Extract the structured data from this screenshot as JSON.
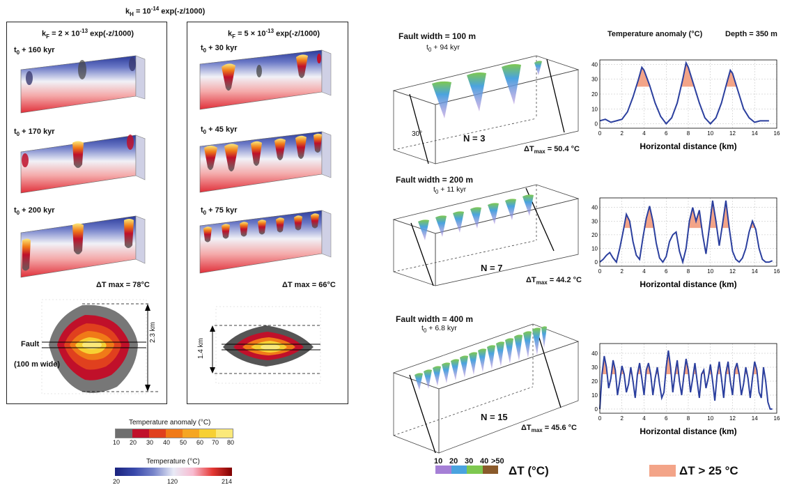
{
  "header": {
    "kh": "k",
    "kh_sub": "H",
    "kh_eq": " = 10",
    "kh_exp": "-14",
    "kh_tail": " exp(-z/1000)"
  },
  "left_panel": {
    "title_k": "k",
    "title_sub": "F",
    "title_eq": " = 2 × 10",
    "title_exp": "-13",
    "title_tail": " exp(-z/1000)",
    "times": [
      {
        "t": "t",
        "sub": "0",
        "rest": " + 160 kyr"
      },
      {
        "t": "t",
        "sub": "0",
        "rest": " + 170 kyr"
      },
      {
        "t": "t",
        "sub": "0",
        "rest": " + 200 kyr"
      }
    ],
    "dtmax": "ΔT max = 78°C",
    "fault_label": "Fault",
    "fault_width": "(100 m wide)",
    "scale": "2.3 km"
  },
  "mid_panel": {
    "title_k": "k",
    "title_sub": "F",
    "title_eq": " = 5 × 10",
    "title_exp": "-13",
    "title_tail": " exp(-z/1000)",
    "times": [
      {
        "t": "t",
        "sub": "0",
        "rest": " + 30 kyr"
      },
      {
        "t": "t",
        "sub": "0",
        "rest": " + 45 kyr"
      },
      {
        "t": "t",
        "sub": "0",
        "rest": " + 75 kyr"
      }
    ],
    "dtmax": "ΔT max = 66°C",
    "scale": "1.4 km"
  },
  "colorbar_anomaly": {
    "title": "Temperature anomaly (°C)",
    "ticks": [
      "10",
      "20",
      "30",
      "40",
      "50",
      "60",
      "70",
      "80"
    ],
    "colors": [
      "#6e6e6e",
      "#c0102a",
      "#e0401e",
      "#f07a18",
      "#f5a623",
      "#f7d033",
      "#fbe97a"
    ]
  },
  "colorbar_temp": {
    "title": "Temperature (°C)",
    "ticks": [
      "20",
      "120",
      "214"
    ]
  },
  "right": {
    "rows": [
      {
        "width": "Fault width = 100 m",
        "t": "t",
        "sub": "0",
        "rest": " + 94 kyr",
        "n": "N = 3",
        "dt": "ΔT",
        "dtsub": "max",
        "dtval": " = 50.4 °C",
        "angle": "30°"
      },
      {
        "width": "Fault width = 200 m",
        "t": "t",
        "sub": "0",
        "rest": " + 11 kyr",
        "n": "N = 7",
        "dt": "ΔT",
        "dtsub": "max",
        "dtval": " = 44.2 °C"
      },
      {
        "width": "Fault width = 400 m",
        "t": "t",
        "sub": "0",
        "rest": " + 6.8 kyr",
        "n": "N = 15",
        "dt": "ΔT",
        "dtsub": "max",
        "dtval": " = 45.6 °C"
      }
    ],
    "chart_header": "Temperature anomaly (°C)",
    "chart_depth": "Depth = 350 m",
    "xlabel": "Horizontal distance  (km)",
    "legend_dt_ticks": [
      "10",
      "20",
      "30",
      "40",
      ">50"
    ],
    "legend_dt_label": "ΔT (°C)",
    "legend_dt_colors": [
      "#a57fd6",
      "#4aa3df",
      "#7ec850",
      "#8a5a2b"
    ],
    "legend_gt": "ΔT > 25 °C",
    "legend_gt_color": "#f3a488"
  },
  "chart_data": [
    {
      "type": "line",
      "x": [
        0,
        0.5,
        1,
        1.5,
        2,
        2.5,
        3,
        3.5,
        3.8,
        4,
        4.5,
        5,
        5.5,
        6,
        6.5,
        7,
        7.5,
        7.8,
        8,
        8.5,
        9,
        9.5,
        10,
        10.5,
        11,
        11.5,
        11.8,
        12,
        12.5,
        13,
        13.5,
        14,
        14.5,
        15,
        15.3
      ],
      "y": [
        2,
        3,
        1,
        2,
        3,
        8,
        18,
        30,
        38,
        36,
        26,
        14,
        5,
        0,
        4,
        14,
        30,
        41,
        38,
        26,
        14,
        4,
        0,
        4,
        14,
        28,
        36,
        34,
        22,
        10,
        4,
        1,
        2,
        2,
        2
      ],
      "xlim": [
        0,
        16
      ],
      "ylim": [
        -3,
        43
      ],
      "xticks": [
        0,
        2,
        4,
        6,
        8,
        10,
        12,
        14,
        16
      ],
      "yticks": [
        0,
        10,
        20,
        30,
        40
      ],
      "threshold": 25,
      "xlabel": "Horizontal distance  (km)"
    },
    {
      "type": "line",
      "x": [
        0,
        0.3,
        0.6,
        0.9,
        1.2,
        1.5,
        1.8,
        2.1,
        2.4,
        2.7,
        3,
        3.3,
        3.6,
        3.9,
        4.2,
        4.5,
        4.8,
        5.1,
        5.4,
        5.7,
        6,
        6.3,
        6.6,
        6.9,
        7.2,
        7.5,
        7.8,
        8.1,
        8.4,
        8.7,
        9,
        9.3,
        9.6,
        9.9,
        10.2,
        10.5,
        10.8,
        11.1,
        11.4,
        11.7,
        12,
        12.3,
        12.6,
        12.9,
        13.2,
        13.5,
        13.8,
        14.1,
        14.4,
        14.7,
        15,
        15.3,
        15.6
      ],
      "y": [
        0,
        2,
        5,
        7,
        3,
        0,
        10,
        22,
        35,
        30,
        15,
        5,
        2,
        18,
        32,
        41,
        30,
        14,
        3,
        0,
        4,
        15,
        20,
        22,
        8,
        0,
        10,
        30,
        40,
        30,
        38,
        20,
        6,
        25,
        45,
        30,
        12,
        28,
        45,
        25,
        8,
        2,
        0,
        3,
        10,
        22,
        30,
        24,
        10,
        2,
        0,
        0,
        1
      ],
      "xlim": [
        0,
        16
      ],
      "ylim": [
        -3,
        47
      ],
      "xticks": [
        0,
        2,
        4,
        6,
        8,
        10,
        12,
        14,
        16
      ],
      "yticks": [
        0,
        10,
        20,
        30,
        40
      ],
      "threshold": 25,
      "xlabel": "Horizontal distance  (km)"
    },
    {
      "type": "line",
      "x": [
        0,
        0.2,
        0.4,
        0.6,
        0.8,
        1,
        1.2,
        1.4,
        1.6,
        1.8,
        2,
        2.2,
        2.4,
        2.6,
        2.8,
        3,
        3.2,
        3.4,
        3.6,
        3.8,
        4,
        4.2,
        4.4,
        4.6,
        4.8,
        5,
        5.2,
        5.4,
        5.6,
        5.8,
        6,
        6.2,
        6.4,
        6.6,
        6.8,
        7,
        7.2,
        7.4,
        7.6,
        7.8,
        8,
        8.2,
        8.4,
        8.6,
        8.8,
        9,
        9.2,
        9.4,
        9.6,
        9.8,
        10,
        10.2,
        10.4,
        10.6,
        10.8,
        11,
        11.2,
        11.4,
        11.6,
        11.8,
        12,
        12.2,
        12.4,
        12.6,
        12.8,
        13,
        13.2,
        13.4,
        13.6,
        13.8,
        14,
        14.2,
        14.4,
        14.6,
        14.8,
        15,
        15.2,
        15.4,
        15.6
      ],
      "y": [
        0,
        25,
        38,
        30,
        15,
        22,
        35,
        28,
        10,
        20,
        31,
        25,
        12,
        18,
        30,
        20,
        8,
        25,
        33,
        22,
        10,
        28,
        33,
        25,
        10,
        22,
        30,
        18,
        8,
        12,
        30,
        42,
        30,
        12,
        25,
        35,
        20,
        10,
        24,
        36,
        28,
        12,
        22,
        33,
        20,
        8,
        25,
        28,
        15,
        22,
        32,
        20,
        6,
        24,
        34,
        22,
        8,
        26,
        34,
        20,
        10,
        28,
        33,
        25,
        10,
        18,
        30,
        22,
        8,
        22,
        34,
        28,
        12,
        8,
        30,
        20,
        5,
        0,
        0
      ],
      "xlim": [
        0,
        16
      ],
      "ylim": [
        -3,
        47
      ],
      "xticks": [
        0,
        2,
        4,
        6,
        8,
        10,
        12,
        14,
        16
      ],
      "yticks": [
        0,
        10,
        20,
        30,
        40
      ],
      "threshold": 25,
      "xlabel": "Horizontal distance  (km)"
    }
  ]
}
